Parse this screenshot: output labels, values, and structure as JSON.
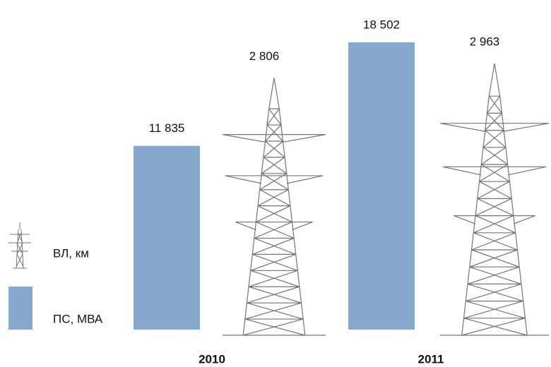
{
  "chart_data": {
    "type": "bar",
    "categories": [
      "2010",
      "2011"
    ],
    "series": [
      {
        "name": "ПС, МВА",
        "color": "#86a8cc",
        "values": [
          11835,
          18502
        ],
        "value_labels": [
          "11 835",
          "18 502"
        ]
      },
      {
        "name": "ВЛ, км",
        "color": "#70757c",
        "values": [
          2806,
          2963
        ],
        "value_labels": [
          "2 806",
          "2 963"
        ]
      }
    ]
  }
}
